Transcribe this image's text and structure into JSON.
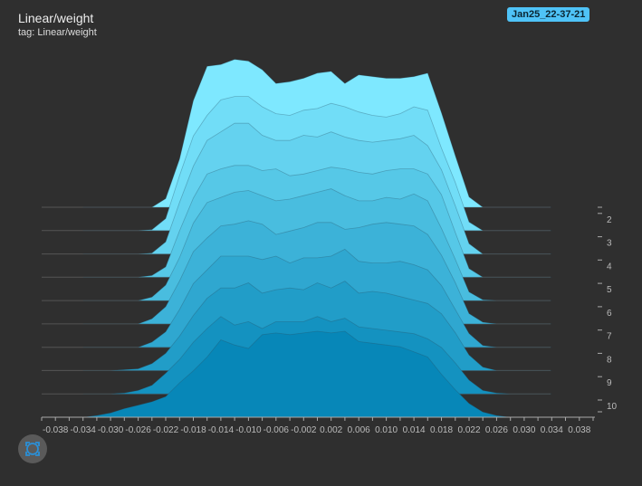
{
  "header": {
    "title": "Linear/weight",
    "subtitle": "tag: Linear/weight",
    "run_label": "Jan25_22-37-21"
  },
  "colors": {
    "background": "#2f2f2f",
    "badge": "#4fc3f7",
    "ridge_front": "#0787b8",
    "ridge_back": "#7ee8ff",
    "axis": "#aaaaaa"
  },
  "chart_data": {
    "type": "area",
    "title": "Linear/weight",
    "xlabel": "",
    "ylabel": "",
    "xlim": [
      -0.04,
      0.04
    ],
    "x_ticks": [
      -0.038,
      -0.034,
      -0.03,
      -0.026,
      -0.022,
      -0.018,
      -0.014,
      -0.01,
      -0.006,
      -0.002,
      0.002,
      0.006,
      0.01,
      0.014,
      0.018,
      0.022,
      0.026,
      0.03,
      0.034,
      0.038
    ],
    "x_tick_labels": [
      "-0.038",
      "-0.034",
      "-0.030",
      "-0.026",
      "-0.022",
      "-0.018",
      "-0.014",
      "-0.010",
      "-0.006",
      "-0.002",
      "0.002",
      "0.006",
      "0.010",
      "0.014",
      "0.018",
      "0.022",
      "0.026",
      "0.030",
      "0.034",
      "0.038"
    ],
    "step_labels": [
      "2",
      "3",
      "4",
      "5",
      "6",
      "7",
      "8",
      "9",
      "10"
    ],
    "grid": false,
    "x": [
      -0.034,
      -0.032,
      -0.03,
      -0.028,
      -0.026,
      -0.024,
      -0.022,
      -0.02,
      -0.018,
      -0.016,
      -0.014,
      -0.012,
      -0.01,
      -0.008,
      -0.006,
      -0.004,
      -0.002,
      0.0,
      0.002,
      0.004,
      0.006,
      0.008,
      0.01,
      0.012,
      0.014,
      0.016,
      0.018,
      0.02,
      0.022,
      0.024,
      0.026,
      0.028,
      0.03,
      0.032,
      0.034
    ],
    "series": [
      {
        "step": 1,
        "values": [
          0,
          0,
          0,
          0,
          0,
          0,
          5,
          28,
          62,
          82,
          83,
          86,
          85,
          80,
          72,
          73,
          75,
          78,
          79,
          72,
          77,
          76,
          75,
          75,
          76,
          78,
          55,
          30,
          6,
          0,
          0,
          0,
          0,
          0,
          0
        ]
      },
      {
        "step": 2,
        "values": [
          0,
          0,
          0,
          0,
          0,
          0.5,
          7,
          32,
          55,
          67,
          76,
          78,
          78,
          72,
          68,
          67,
          70,
          71,
          74,
          72,
          69,
          67,
          66,
          68,
          72,
          70,
          48,
          28,
          5,
          0,
          0,
          0,
          0,
          0,
          0
        ]
      },
      {
        "step": 3,
        "values": [
          0,
          0,
          0,
          0,
          0,
          0.5,
          7,
          30,
          51,
          66,
          71,
          76,
          76,
          69,
          66,
          66,
          69,
          68,
          71,
          68,
          66,
          65,
          66,
          67,
          69,
          63,
          49,
          28,
          6,
          0,
          0,
          0,
          0,
          0,
          0
        ]
      },
      {
        "step": 4,
        "values": [
          0,
          0,
          0,
          0,
          0,
          1,
          6,
          27,
          46,
          60,
          63,
          65,
          65,
          62,
          63,
          59,
          60,
          62,
          64,
          63,
          61,
          60,
          62,
          63,
          63,
          60,
          48,
          26,
          5,
          0,
          0,
          0,
          0,
          0,
          0
        ]
      },
      {
        "step": 5,
        "values": [
          0,
          0,
          0,
          0,
          0,
          2,
          9,
          25,
          45,
          57,
          60,
          63,
          64,
          61,
          58,
          59,
          61,
          63,
          65,
          61,
          58,
          58,
          60,
          59,
          62,
          58,
          42,
          24,
          5,
          0.5,
          0,
          0,
          0,
          0,
          0
        ]
      },
      {
        "step": 6,
        "values": [
          0,
          0,
          0,
          0,
          0,
          3,
          10,
          25,
          42,
          50,
          57,
          58,
          60,
          58,
          52,
          54,
          56,
          59,
          59,
          55,
          56,
          58,
          59,
          58,
          57,
          52,
          40,
          24,
          6,
          1,
          0,
          0,
          0,
          0,
          0
        ]
      },
      {
        "step": 7,
        "values": [
          0,
          0,
          0,
          0,
          0,
          3,
          9,
          22,
          37,
          45,
          53,
          53,
          53,
          51,
          53,
          49,
          52,
          52,
          53,
          57,
          50,
          49,
          49,
          50,
          48,
          45,
          36,
          22,
          8,
          1,
          0,
          0,
          0,
          0,
          0
        ]
      },
      {
        "step": 8,
        "values": [
          0,
          0,
          0,
          0.5,
          1,
          4,
          10,
          20,
          32,
          42,
          48,
          48,
          51,
          45,
          47,
          48,
          47,
          51,
          48,
          52,
          45,
          46,
          45,
          43,
          41,
          39,
          33,
          22,
          9,
          2,
          0,
          0,
          0,
          0,
          0
        ]
      },
      {
        "step": 9,
        "values": [
          0,
          0,
          0,
          0.5,
          2,
          5,
          12,
          20,
          30,
          38,
          45,
          40,
          42,
          38,
          42,
          42,
          42,
          45,
          42,
          44,
          39,
          38,
          37,
          36,
          35,
          32,
          27,
          18,
          8,
          2,
          0.5,
          0,
          0,
          0,
          0
        ]
      },
      {
        "step": 10,
        "values": [
          0,
          1,
          2.5,
          5,
          7,
          9,
          12,
          20,
          27,
          35,
          45,
          42,
          40,
          48,
          49,
          48,
          49,
          50,
          49,
          50,
          44,
          43,
          42,
          41,
          38,
          35,
          25,
          16,
          8,
          3,
          1,
          0,
          0,
          0,
          0
        ]
      }
    ]
  }
}
